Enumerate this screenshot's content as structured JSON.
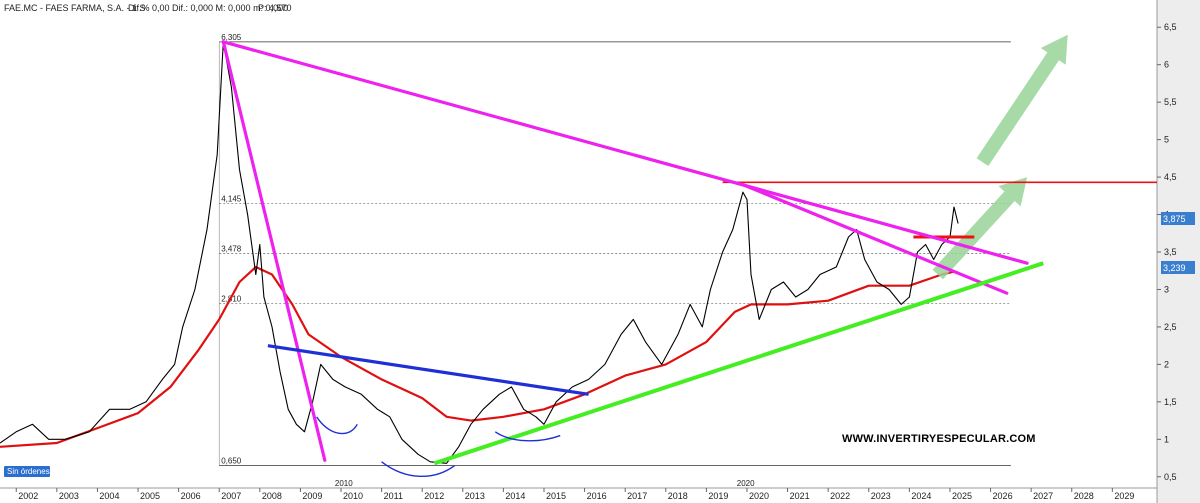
{
  "header": {
    "symbol": "FAE.MC - FAES FARMA, S.A. - 1 S",
    "stats": "Dif.% 0,00  Dif.: 0,000  M: 0,000  m: 0,000",
    "price_label": "P: 4,570",
    "price_color": "#e02020"
  },
  "watermark": "WWW.INVERTIRYESPECULAR.COM",
  "order_badge": "Sin órdenes",
  "right_axis_labels": {
    "last_price": "3,875",
    "moving_avg": "3,239"
  },
  "colors": {
    "price": "#000000",
    "moving_avg": "#e01010",
    "magenta_trend": "#ee22ee",
    "blue_trend": "#1f2fd6",
    "green_trend": "#44ee22",
    "resistance": "#ee1111",
    "arrow": "#98d498",
    "fib_line": "#666666",
    "top_line": "#333333",
    "right_panel": "#ededed",
    "last_price_tag": "#3a7ed0",
    "ma_tag": "#3a7ed0",
    "badge": "#2a6fd0"
  },
  "chart_data": {
    "type": "line",
    "x_axis": {
      "ticks": [
        "2002",
        "2003",
        "2004",
        "2005",
        "2006",
        "2007",
        "2008",
        "2009",
        "2010",
        "2011",
        "2012",
        "2013",
        "2014",
        "2015",
        "2016",
        "2017",
        "2018",
        "2019",
        "2020",
        "2021",
        "2022",
        "2023",
        "2024",
        "2025",
        "2026",
        "2027",
        "2028",
        "2029"
      ],
      "range": [
        2001.6,
        2030.1
      ],
      "sub_labels": [
        {
          "x": 2009.8,
          "text": "2010"
        },
        {
          "x": 2019.7,
          "text": "2020"
        }
      ]
    },
    "y_axis": {
      "ticks": [
        "0,5",
        "1",
        "1,5",
        "2",
        "2,5",
        "3",
        "3,5",
        "4",
        "4,5",
        "5",
        "5,5",
        "6",
        "6,5"
      ],
      "tick_values": [
        0.5,
        1,
        1.5,
        2,
        2.5,
        3,
        3.5,
        4,
        4.5,
        5,
        5.5,
        6,
        6.5
      ],
      "range": [
        0.35,
        6.65
      ],
      "position": "right"
    },
    "fib_levels": [
      {
        "label": "6,305",
        "value": 6.305
      },
      {
        "label": "4,145",
        "value": 4.145
      },
      {
        "label": "3,478",
        "value": 3.478
      },
      {
        "label": "2,810",
        "value": 2.81
      },
      {
        "label": "0,650",
        "value": 0.65
      }
    ],
    "price_series": [
      [
        2001.6,
        0.95
      ],
      [
        2002.0,
        1.1
      ],
      [
        2002.4,
        1.2
      ],
      [
        2002.8,
        1.0
      ],
      [
        2003.2,
        1.0
      ],
      [
        2003.8,
        1.1
      ],
      [
        2004.3,
        1.4
      ],
      [
        2004.8,
        1.4
      ],
      [
        2005.2,
        1.5
      ],
      [
        2005.6,
        1.8
      ],
      [
        2005.9,
        2.0
      ],
      [
        2006.1,
        2.5
      ],
      [
        2006.4,
        3.0
      ],
      [
        2006.7,
        3.8
      ],
      [
        2006.95,
        4.8
      ],
      [
        2007.1,
        6.3
      ],
      [
        2007.3,
        5.7
      ],
      [
        2007.5,
        4.6
      ],
      [
        2007.7,
        4.0
      ],
      [
        2007.9,
        3.2
      ],
      [
        2008.0,
        3.6
      ],
      [
        2008.1,
        2.9
      ],
      [
        2008.3,
        2.5
      ],
      [
        2008.5,
        1.9
      ],
      [
        2008.7,
        1.4
      ],
      [
        2008.9,
        1.2
      ],
      [
        2009.1,
        1.1
      ],
      [
        2009.3,
        1.5
      ],
      [
        2009.5,
        2.0
      ],
      [
        2009.8,
        1.8
      ],
      [
        2010.1,
        1.7
      ],
      [
        2010.5,
        1.6
      ],
      [
        2010.9,
        1.4
      ],
      [
        2011.2,
        1.3
      ],
      [
        2011.5,
        1.0
      ],
      [
        2011.9,
        0.8
      ],
      [
        2012.2,
        0.7
      ],
      [
        2012.6,
        0.68
      ],
      [
        2012.9,
        0.9
      ],
      [
        2013.2,
        1.2
      ],
      [
        2013.5,
        1.4
      ],
      [
        2013.9,
        1.6
      ],
      [
        2014.2,
        1.7
      ],
      [
        2014.5,
        1.4
      ],
      [
        2014.8,
        1.3
      ],
      [
        2015.0,
        1.2
      ],
      [
        2015.3,
        1.5
      ],
      [
        2015.7,
        1.7
      ],
      [
        2016.1,
        1.8
      ],
      [
        2016.5,
        2.0
      ],
      [
        2016.9,
        2.4
      ],
      [
        2017.2,
        2.6
      ],
      [
        2017.5,
        2.3
      ],
      [
        2017.9,
        2.0
      ],
      [
        2018.3,
        2.4
      ],
      [
        2018.6,
        2.8
      ],
      [
        2018.9,
        2.5
      ],
      [
        2019.1,
        3.0
      ],
      [
        2019.4,
        3.5
      ],
      [
        2019.65,
        3.8
      ],
      [
        2019.9,
        4.3
      ],
      [
        2020.0,
        4.2
      ],
      [
        2020.1,
        3.2
      ],
      [
        2020.3,
        2.6
      ],
      [
        2020.6,
        3.0
      ],
      [
        2020.9,
        3.1
      ],
      [
        2021.2,
        2.9
      ],
      [
        2021.5,
        3.0
      ],
      [
        2021.8,
        3.2
      ],
      [
        2022.2,
        3.3
      ],
      [
        2022.5,
        3.7
      ],
      [
        2022.7,
        3.8
      ],
      [
        2022.9,
        3.4
      ],
      [
        2023.2,
        3.1
      ],
      [
        2023.5,
        3.0
      ],
      [
        2023.8,
        2.8
      ],
      [
        2024.0,
        2.9
      ],
      [
        2024.2,
        3.5
      ],
      [
        2024.4,
        3.6
      ],
      [
        2024.6,
        3.4
      ],
      [
        2024.8,
        3.6
      ],
      [
        2025.0,
        3.7
      ],
      [
        2025.1,
        4.1
      ],
      [
        2025.2,
        3.88
      ]
    ],
    "moving_avg_series": [
      [
        2001.6,
        0.9
      ],
      [
        2003.0,
        0.95
      ],
      [
        2004.0,
        1.15
      ],
      [
        2005.0,
        1.35
      ],
      [
        2005.8,
        1.7
      ],
      [
        2006.5,
        2.2
      ],
      [
        2007.0,
        2.6
      ],
      [
        2007.5,
        3.1
      ],
      [
        2007.9,
        3.3
      ],
      [
        2008.3,
        3.2
      ],
      [
        2008.8,
        2.8
      ],
      [
        2009.2,
        2.4
      ],
      [
        2010.0,
        2.1
      ],
      [
        2011.0,
        1.8
      ],
      [
        2012.0,
        1.55
      ],
      [
        2012.6,
        1.3
      ],
      [
        2013.2,
        1.25
      ],
      [
        2014.0,
        1.3
      ],
      [
        2015.0,
        1.4
      ],
      [
        2016.0,
        1.6
      ],
      [
        2017.0,
        1.85
      ],
      [
        2018.0,
        2.0
      ],
      [
        2019.0,
        2.3
      ],
      [
        2019.7,
        2.7
      ],
      [
        2020.1,
        2.8
      ],
      [
        2021.0,
        2.8
      ],
      [
        2022.0,
        2.85
      ],
      [
        2023.0,
        3.05
      ],
      [
        2024.0,
        3.05
      ],
      [
        2024.8,
        3.2
      ],
      [
        2025.1,
        3.24
      ]
    ],
    "drawings": {
      "magenta_trendlines": [
        [
          [
            2007.1,
            6.305
          ],
          [
            2026.9,
            3.35
          ]
        ],
        [
          [
            2007.1,
            6.305
          ],
          [
            2009.6,
            0.72
          ]
        ],
        [
          [
            2019.9,
            4.4
          ],
          [
            2026.4,
            2.95
          ]
        ]
      ],
      "blue_trendline": [
        [
          2008.2,
          2.25
        ],
        [
          2016.1,
          1.6
        ]
      ],
      "green_trendline": [
        [
          2012.3,
          0.68
        ],
        [
          2027.3,
          3.35
        ]
      ],
      "resistance_line": [
        [
          2019.4,
          4.43
        ],
        [
          2030.1,
          4.43
        ]
      ],
      "short_resistance": [
        [
          2024.1,
          3.7
        ],
        [
          2025.6,
          3.7
        ]
      ],
      "top_line": [
        [
          2007.0,
          6.305
        ],
        [
          2026.5,
          6.305
        ]
      ],
      "support_arcs": [
        [
          [
            2009.4,
            1.3
          ],
          [
            2009.7,
            1.05
          ],
          [
            2010.2,
            1.0
          ],
          [
            2010.4,
            1.2
          ]
        ],
        [
          [
            2011.0,
            0.7
          ],
          [
            2011.6,
            0.45
          ],
          [
            2012.3,
            0.45
          ],
          [
            2012.8,
            0.65
          ]
        ],
        [
          [
            2013.8,
            1.1
          ],
          [
            2014.2,
            0.95
          ],
          [
            2014.9,
            0.95
          ],
          [
            2015.4,
            1.05
          ]
        ]
      ],
      "arrows": [
        [
          [
            2024.7,
            3.2
          ],
          [
            2026.9,
            4.5
          ]
        ],
        [
          [
            2025.8,
            4.7
          ],
          [
            2027.9,
            6.4
          ]
        ]
      ]
    }
  }
}
